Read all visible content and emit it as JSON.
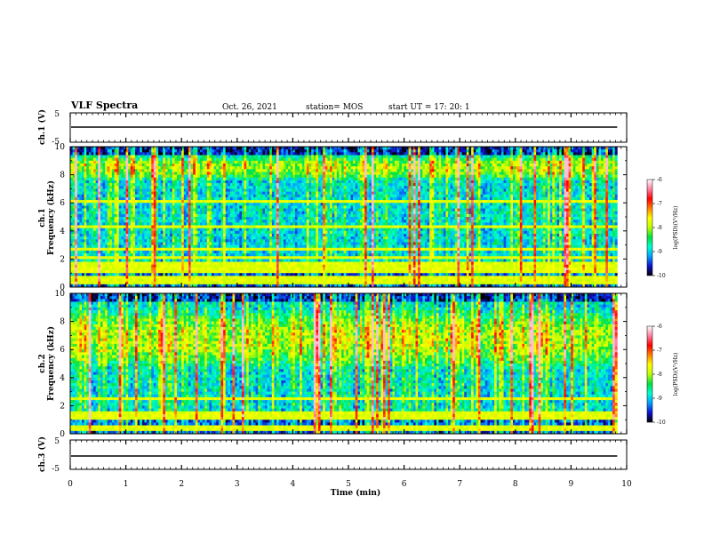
{
  "header": {
    "title": "VLF Spectra",
    "date": "Oct. 26, 2021",
    "station": "station= MOS",
    "start": "start  UT  =    17: 20: 1"
  },
  "chart_data": {
    "type": "heatmap",
    "xlabel": "Time  (min)",
    "xlim": [
      0,
      10
    ],
    "xticks": [
      "0",
      "1",
      "2",
      "3",
      "4",
      "5",
      "6",
      "7",
      "8",
      "9",
      "10"
    ],
    "data_end_min": 9.83,
    "panels": [
      {
        "id": "ch1_voltage",
        "ylabel": "ch.1 (V)",
        "ylim": [
          -5,
          5
        ],
        "yticks": [
          "5",
          "-5"
        ],
        "trace_level_V": 0
      },
      {
        "id": "ch1_spectrogram",
        "ylabel": "Frequency (kHz)",
        "channel": "ch.1",
        "ylim": [
          0,
          10
        ],
        "yticks": [
          "0",
          "2",
          "4",
          "6",
          "8",
          "10"
        ],
        "features": {
          "strong_band_kHz": [
            8,
            9
          ],
          "persistent_lines_kHz": [
            0.3,
            0.6,
            1.2,
            1.6,
            2.1,
            2.7,
            4.3,
            6.1
          ],
          "noise_type": "impulsive vertical sferics"
        }
      },
      {
        "id": "ch2_spectrogram",
        "ylabel": "Frequency (kHz)",
        "channel": "ch.2",
        "ylim": [
          0,
          10
        ],
        "yticks": [
          "0",
          "2",
          "4",
          "6",
          "8",
          "10"
        ],
        "features": {
          "strong_band_kHz": [
            5,
            8.5
          ],
          "persistent_lines_kHz": [
            0.4,
            1.1,
            1.4,
            2.5
          ],
          "noise_type": "impulsive vertical sferics"
        }
      },
      {
        "id": "ch3_voltage",
        "ylabel": "ch.3 (V)",
        "ylim": [
          -5,
          5
        ],
        "yticks": [
          "5",
          "-5"
        ],
        "trace_level_V": -1
      }
    ],
    "colorbar": {
      "label": "log(PSD)(V²/Hz)",
      "range": [
        -10,
        -6
      ],
      "ticks": [
        "-6",
        "-7",
        "-8",
        "-9",
        "-10"
      ],
      "colors": [
        "#000000",
        "#1010d0",
        "#00a0ff",
        "#00ffd0",
        "#00e040",
        "#c0ff00",
        "#ffff00",
        "#ff8000",
        "#ff0000",
        "#ff80a0",
        "#ffffff"
      ]
    }
  }
}
